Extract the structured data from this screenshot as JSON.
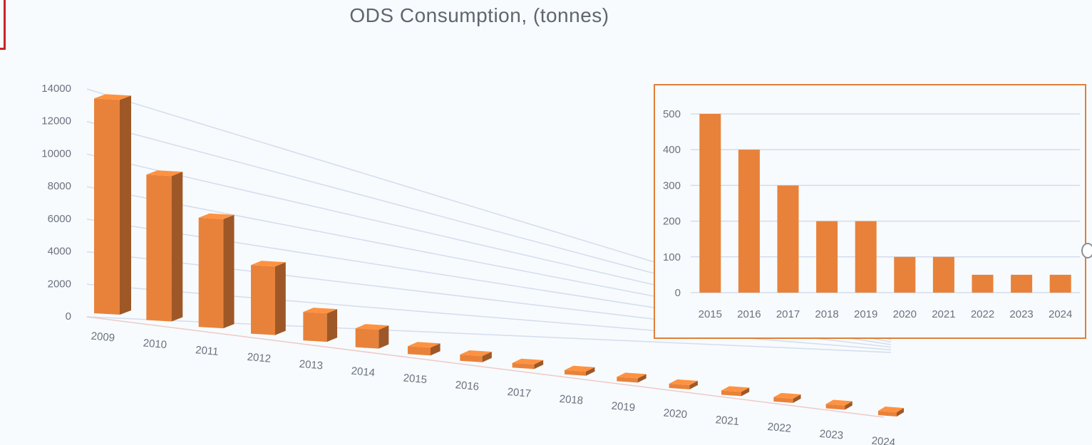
{
  "chart_data": [
    {
      "type": "bar",
      "title": "ODS Consumption, (tonnes)",
      "xlabel": "",
      "ylabel": "",
      "categories": [
        "2009",
        "2010",
        "2011",
        "2012",
        "2013",
        "2014",
        "2015",
        "2016",
        "2017",
        "2018",
        "2019",
        "2020",
        "2021",
        "2022",
        "2023",
        "2024"
      ],
      "values": [
        13200,
        9000,
        6800,
        4300,
        1800,
        1200,
        500,
        400,
        300,
        200,
        200,
        100,
        100,
        50,
        50,
        50
      ],
      "ylim": [
        0,
        14000
      ],
      "yticks": [
        "0",
        "2000",
        "4000",
        "6000",
        "8000",
        "10000",
        "12000",
        "14000"
      ],
      "grid": true,
      "legend": "none",
      "color": "#e8823a"
    },
    {
      "type": "bar",
      "title": "",
      "categories": [
        "2015",
        "2016",
        "2017",
        "2018",
        "2019",
        "2020",
        "2021",
        "2022",
        "2023",
        "2024"
      ],
      "values": [
        500,
        400,
        300,
        200,
        200,
        100,
        100,
        50,
        50,
        50
      ],
      "ylim": [
        0,
        500
      ],
      "yticks": [
        "0",
        "100",
        "200",
        "300",
        "400",
        "500"
      ],
      "grid": true,
      "legend": "none",
      "color": "#e8823a"
    }
  ]
}
